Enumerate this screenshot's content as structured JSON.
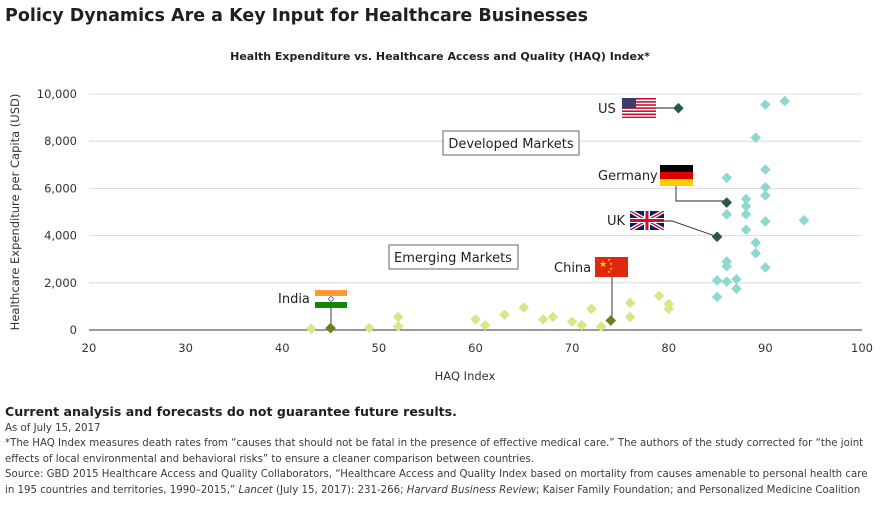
{
  "title": "Policy Dynamics Are a Key Input for Healthcare Businesses",
  "chart_data": {
    "type": "scatter",
    "title": "Health Expenditure vs. Healthcare Access and Quality (HAQ) Index*",
    "xlabel": "HAQ Index",
    "ylabel": "Healthcare Expenditure per Capita (USD)",
    "xlim": [
      20,
      100
    ],
    "ylim": [
      0,
      10000
    ],
    "xticks": [
      20,
      30,
      40,
      50,
      60,
      70,
      80,
      90,
      100
    ],
    "yticks": [
      0,
      2000,
      4000,
      6000,
      8000,
      10000
    ],
    "ytick_labels": [
      "0",
      "2,000",
      "4,000",
      "6,000",
      "8,000",
      "10,000"
    ],
    "grid": "horizontal",
    "colors": {
      "developed": "#8ed8cf",
      "developed_highlight": "#235a4f",
      "emerging": "#d6e786",
      "emerging_highlight": "#6f7d1f",
      "grid": "#d3d3d3",
      "axis": "#333333"
    },
    "group_labels": [
      "Developed Markets",
      "Emerging Markets"
    ],
    "series": [
      {
        "group": "developed",
        "points": [
          {
            "x": 92,
            "y": 9700
          },
          {
            "x": 90,
            "y": 9550
          },
          {
            "x": 89,
            "y": 8150
          },
          {
            "x": 90,
            "y": 6800
          },
          {
            "x": 86,
            "y": 6450
          },
          {
            "x": 90,
            "y": 6050
          },
          {
            "x": 90,
            "y": 5700
          },
          {
            "x": 88,
            "y": 5550
          },
          {
            "x": 88,
            "y": 5250
          },
          {
            "x": 86,
            "y": 4900
          },
          {
            "x": 88,
            "y": 4900
          },
          {
            "x": 94,
            "y": 4650
          },
          {
            "x": 90,
            "y": 4600
          },
          {
            "x": 88,
            "y": 4250
          },
          {
            "x": 89,
            "y": 3700
          },
          {
            "x": 89,
            "y": 3250
          },
          {
            "x": 86,
            "y": 2900
          },
          {
            "x": 86,
            "y": 2700
          },
          {
            "x": 90,
            "y": 2650
          },
          {
            "x": 85,
            "y": 2100
          },
          {
            "x": 86,
            "y": 2050
          },
          {
            "x": 87,
            "y": 2150
          },
          {
            "x": 87,
            "y": 1750
          },
          {
            "x": 85,
            "y": 1400
          }
        ]
      },
      {
        "group": "emerging",
        "points": [
          {
            "x": 43,
            "y": 50
          },
          {
            "x": 49,
            "y": 80
          },
          {
            "x": 52,
            "y": 550
          },
          {
            "x": 52,
            "y": 150
          },
          {
            "x": 60,
            "y": 450
          },
          {
            "x": 61,
            "y": 200
          },
          {
            "x": 63,
            "y": 650
          },
          {
            "x": 65,
            "y": 950
          },
          {
            "x": 67,
            "y": 450
          },
          {
            "x": 68,
            "y": 550
          },
          {
            "x": 70,
            "y": 350
          },
          {
            "x": 71,
            "y": 200
          },
          {
            "x": 72,
            "y": 900
          },
          {
            "x": 73,
            "y": 150
          },
          {
            "x": 76,
            "y": 1150
          },
          {
            "x": 76,
            "y": 550
          },
          {
            "x": 79,
            "y": 1450
          },
          {
            "x": 80,
            "y": 1100
          },
          {
            "x": 80,
            "y": 900
          }
        ]
      }
    ],
    "highlighted": [
      {
        "label": "US",
        "flag": "us-flag",
        "x": 81,
        "y": 9400,
        "group": "developed"
      },
      {
        "label": "Germany",
        "flag": "germany-flag",
        "x": 86,
        "y": 5400,
        "group": "developed"
      },
      {
        "label": "UK",
        "flag": "uk-flag",
        "x": 85,
        "y": 3950,
        "group": "developed"
      },
      {
        "label": "China",
        "flag": "china-flag",
        "x": 74,
        "y": 400,
        "group": "emerging"
      },
      {
        "label": "India",
        "flag": "india-flag",
        "x": 45,
        "y": 80,
        "group": "emerging"
      }
    ]
  },
  "footer": {
    "disclaimer": "Current analysis and forecasts do not guarantee future results.",
    "as_of": "As of July 15, 2017",
    "note": "*The HAQ Index measures death rates from “causes that should not be fatal in the presence of effective medical care.” The authors of the study corrected for “the joint effects of local environmental and behavioral risks” to ensure a cleaner comparison between countries.",
    "source_prefix": "Source: GBD 2015 Healthcare Access and Quality Collaborators, “Healthcare Access and Quality Index based on mortality from causes amenable to personal health care in 195 countries and territories, 1990–2015,” ",
    "source_lancet": "Lancet",
    "source_mid": " (July 15, 2017): 231-266; ",
    "source_hbr": "Harvard Business Review",
    "source_suffix": "; Kaiser Family Foundation; and Personalized Medicine Coalition"
  }
}
